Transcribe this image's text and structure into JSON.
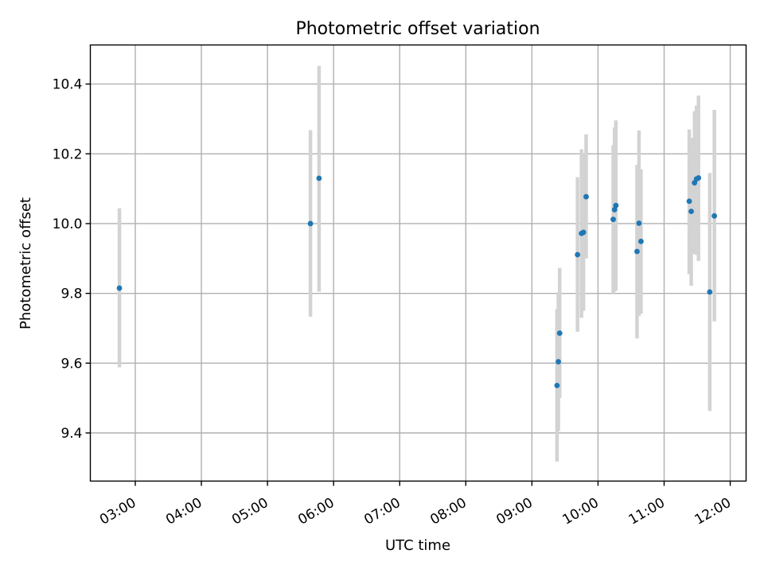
{
  "chart_data": {
    "type": "scatter",
    "title": "Photometric offset variation",
    "xlabel": "UTC time",
    "ylabel": "Photometric offset",
    "x_unit": "hours UTC",
    "xlim": [
      2.32,
      12.24
    ],
    "ylim": [
      9.262,
      10.512
    ],
    "xticks": [
      3,
      4,
      5,
      6,
      7,
      8,
      9,
      10,
      11,
      12
    ],
    "xtick_labels": [
      "03:00",
      "04:00",
      "05:00",
      "06:00",
      "07:00",
      "08:00",
      "09:00",
      "10:00",
      "11:00",
      "12:00"
    ],
    "yticks": [
      9.4,
      9.6,
      9.8,
      10.0,
      10.2,
      10.4
    ],
    "ytick_labels": [
      "9.4",
      "9.6",
      "9.8",
      "10.0",
      "10.2",
      "10.4"
    ],
    "grid": true,
    "colors": {
      "point": "#1f77b4",
      "errorbar": "#d3d3d3",
      "grid": "#b0b0b0"
    },
    "points": [
      {
        "x": 2.76,
        "y": 9.815,
        "lo": 9.588,
        "hi": 10.044
      },
      {
        "x": 5.65,
        "y": 10.0,
        "lo": 9.733,
        "hi": 10.268
      },
      {
        "x": 5.78,
        "y": 10.13,
        "lo": 9.805,
        "hi": 10.452
      },
      {
        "x": 9.38,
        "y": 9.536,
        "lo": 9.318,
        "hi": 9.755
      },
      {
        "x": 9.4,
        "y": 9.604,
        "lo": 9.406,
        "hi": 9.803
      },
      {
        "x": 9.42,
        "y": 9.686,
        "lo": 9.5,
        "hi": 9.873
      },
      {
        "x": 9.69,
        "y": 9.911,
        "lo": 9.69,
        "hi": 10.133
      },
      {
        "x": 9.75,
        "y": 9.972,
        "lo": 9.73,
        "hi": 10.213
      },
      {
        "x": 9.78,
        "y": 9.975,
        "lo": 9.75,
        "hi": 10.2
      },
      {
        "x": 9.82,
        "y": 10.077,
        "lo": 9.9,
        "hi": 10.256
      },
      {
        "x": 10.23,
        "y": 10.012,
        "lo": 9.8,
        "hi": 10.225
      },
      {
        "x": 10.25,
        "y": 10.04,
        "lo": 9.805,
        "hi": 10.275
      },
      {
        "x": 10.27,
        "y": 10.052,
        "lo": 9.808,
        "hi": 10.296
      },
      {
        "x": 10.59,
        "y": 9.92,
        "lo": 9.671,
        "hi": 10.168
      },
      {
        "x": 10.62,
        "y": 10.001,
        "lo": 9.735,
        "hi": 10.267
      },
      {
        "x": 10.65,
        "y": 9.949,
        "lo": 9.742,
        "hi": 10.156
      },
      {
        "x": 11.38,
        "y": 10.064,
        "lo": 9.855,
        "hi": 10.27
      },
      {
        "x": 11.41,
        "y": 10.035,
        "lo": 9.822,
        "hi": 10.246
      },
      {
        "x": 11.46,
        "y": 10.117,
        "lo": 9.913,
        "hi": 10.322
      },
      {
        "x": 11.49,
        "y": 10.128,
        "lo": 9.91,
        "hi": 10.338
      },
      {
        "x": 11.52,
        "y": 10.131,
        "lo": 9.893,
        "hi": 10.367
      },
      {
        "x": 11.69,
        "y": 9.804,
        "lo": 9.463,
        "hi": 10.145
      },
      {
        "x": 11.76,
        "y": 10.022,
        "lo": 9.72,
        "hi": 10.326
      }
    ]
  }
}
